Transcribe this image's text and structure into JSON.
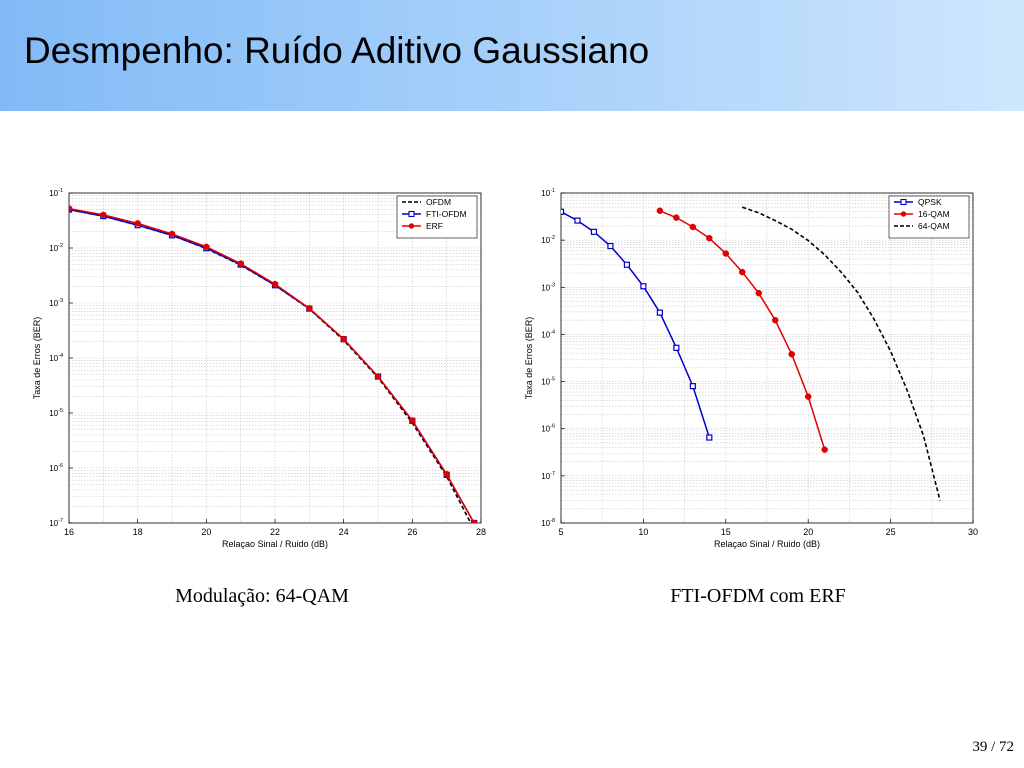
{
  "slide": {
    "title": "Desmpenho: Ruído Aditivo Gaussiano",
    "page_current": "39",
    "page_total": "72"
  },
  "captions": {
    "left": "Modulação: 64-QAM",
    "right": "FTI-OFDM com ERF"
  },
  "chart_data": [
    {
      "type": "line",
      "title": "",
      "xlabel": "Relaçao Sinal / Ruido (dB)",
      "ylabel": "Taxa de Erros (BER)",
      "xlim": [
        16,
        28
      ],
      "ylim": [
        1e-07,
        0.1
      ],
      "yscale": "log",
      "xticks": [
        16,
        18,
        20,
        22,
        24,
        26,
        28
      ],
      "yticks_exp": [
        -1,
        -2,
        -3,
        -4,
        -5,
        -6,
        -7
      ],
      "grid": true,
      "legend_position": "top-right",
      "series": [
        {
          "name": "OFDM",
          "color": "#000000",
          "style": "dashed",
          "marker": "none",
          "x": [
            16,
            17,
            18,
            19,
            20,
            21,
            22,
            23,
            24,
            25,
            26,
            27,
            27.7
          ],
          "y": [
            0.05,
            0.038,
            0.026,
            0.017,
            0.0098,
            0.0049,
            0.0021,
            0.00078,
            0.00021,
            4.4e-05,
            6.6e-06,
            7e-07,
            1e-07
          ]
        },
        {
          "name": "FTI-OFDM",
          "color": "#0000cc",
          "style": "solid",
          "marker": "square",
          "x": [
            16,
            17,
            18,
            19,
            20,
            21,
            22,
            23,
            24,
            25,
            26,
            27,
            27.8
          ],
          "y": [
            0.05,
            0.038,
            0.026,
            0.017,
            0.0099,
            0.005,
            0.0021,
            0.00079,
            0.00022,
            4.6e-05,
            7.2e-06,
            7.5e-07,
            1e-07
          ]
        },
        {
          "name": "ERF",
          "color": "#e00000",
          "style": "solid",
          "marker": "circle",
          "x": [
            16,
            17,
            18,
            19,
            20,
            21,
            22,
            23,
            24,
            25,
            26,
            27,
            27.8
          ],
          "y": [
            0.052,
            0.04,
            0.028,
            0.018,
            0.0105,
            0.0052,
            0.0022,
            0.0008,
            0.00022,
            4.6e-05,
            7.3e-06,
            7.7e-07,
            1e-07
          ]
        }
      ]
    },
    {
      "type": "line",
      "title": "",
      "xlabel": "Relaçao Sinal / Ruido (dB)",
      "ylabel": "Taxa de Erros (BER)",
      "xlim": [
        5,
        30
      ],
      "ylim": [
        1e-08,
        0.1
      ],
      "yscale": "log",
      "xticks": [
        5,
        10,
        15,
        20,
        25,
        30
      ],
      "yticks_exp": [
        -1,
        -2,
        -3,
        -4,
        -5,
        -6,
        -7,
        -8
      ],
      "grid": true,
      "legend_position": "top-right",
      "series": [
        {
          "name": "QPSK",
          "color": "#0000cc",
          "style": "solid",
          "marker": "square",
          "x": [
            5,
            6,
            7,
            8,
            9,
            10,
            11,
            12,
            13,
            14
          ],
          "y": [
            0.04,
            0.026,
            0.015,
            0.0075,
            0.003,
            0.00105,
            0.00029,
            5.2e-05,
            8e-06,
            6.5e-07
          ]
        },
        {
          "name": "16-QAM",
          "color": "#e00000",
          "style": "solid",
          "marker": "circle",
          "x": [
            11,
            12,
            13,
            14,
            15,
            16,
            17,
            18,
            19,
            20,
            21
          ],
          "y": [
            0.042,
            0.03,
            0.019,
            0.011,
            0.0052,
            0.0021,
            0.00075,
            0.0002,
            3.8e-05,
            4.8e-06,
            3.6e-07
          ]
        },
        {
          "name": "64-QAM",
          "color": "#000000",
          "style": "dashed",
          "marker": "none",
          "x": [
            16,
            17,
            18,
            19,
            20,
            21,
            22,
            23,
            24,
            25,
            26,
            27,
            28
          ],
          "y": [
            0.05,
            0.038,
            0.026,
            0.017,
            0.0098,
            0.0049,
            0.0021,
            0.00078,
            0.00021,
            4.4e-05,
            6.6e-06,
            7e-07,
            3e-08
          ]
        }
      ]
    }
  ]
}
